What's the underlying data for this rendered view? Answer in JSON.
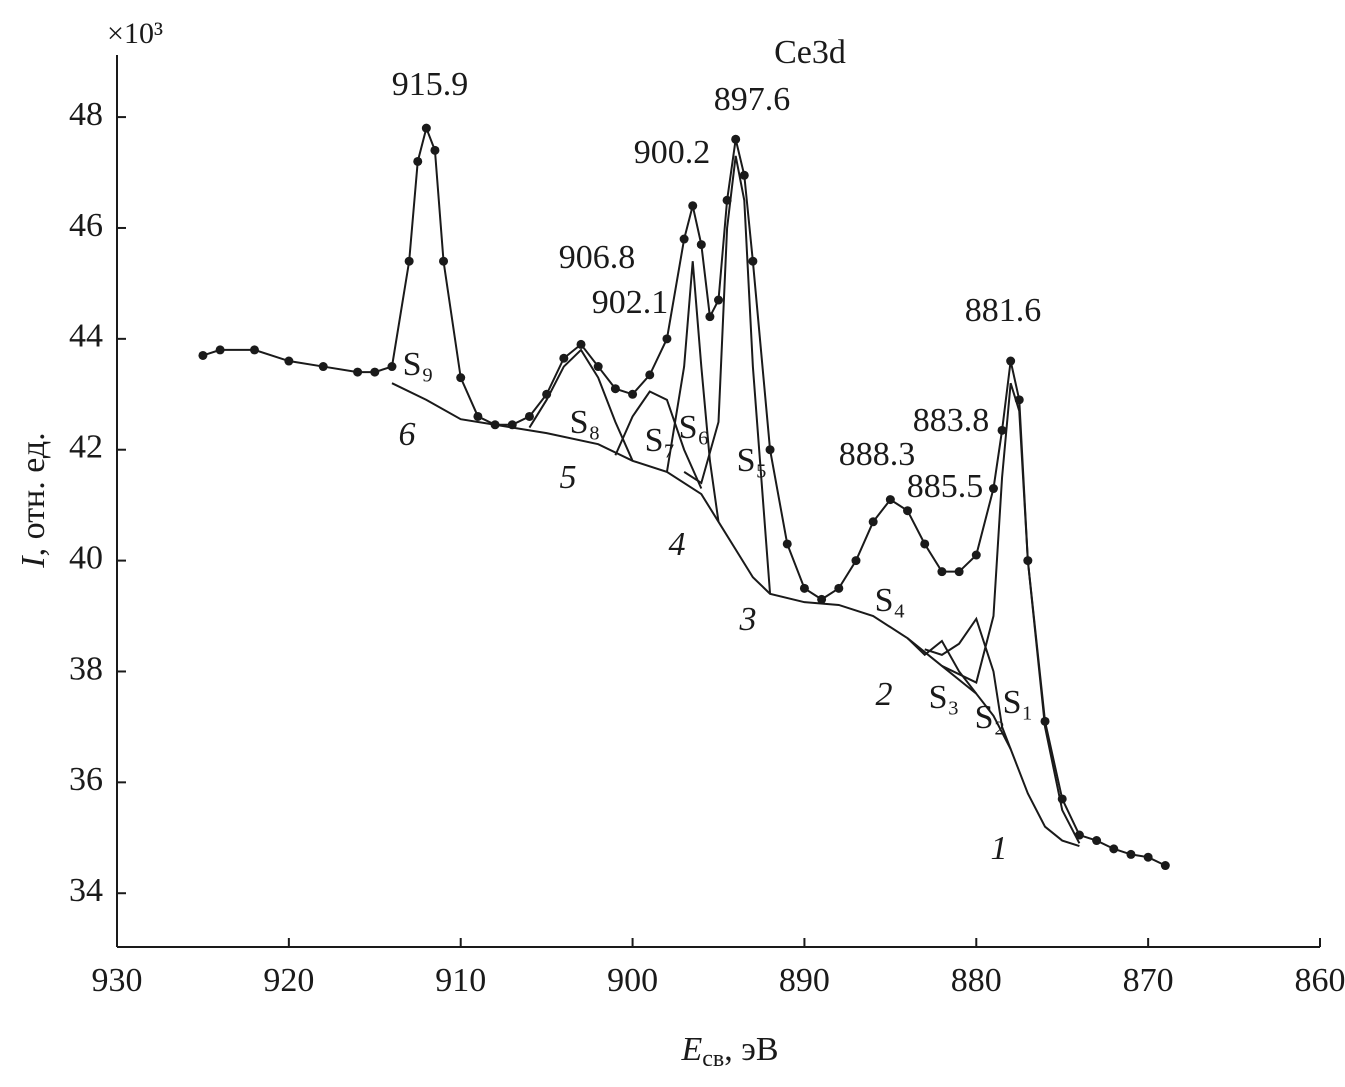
{
  "chart_data": {
    "type": "line",
    "title": "Ce3d",
    "y_multiplier": "×10³",
    "x_label": {
      "symbol": "E",
      "subscript": "св",
      "unit": ", эВ"
    },
    "y_label": {
      "symbol": "I",
      "unit": ", отн. ед."
    },
    "xlim": [
      930,
      860
    ],
    "xticks": [
      930,
      920,
      910,
      900,
      890,
      880,
      870,
      860
    ],
    "ylim": [
      33.03,
      49.12
    ],
    "yticks": [
      34,
      36,
      38,
      40,
      42,
      44,
      46,
      48
    ],
    "grid": false,
    "series": [
      {
        "style": "points-line",
        "color": "#1a1a1a",
        "x": [
          925,
          924,
          922,
          920,
          918,
          916,
          915,
          914,
          913,
          912.5,
          912,
          911.5,
          911,
          910,
          909,
          908,
          907,
          906,
          905,
          904,
          903,
          902,
          901,
          900,
          899,
          898,
          897,
          896.5,
          896,
          895.5,
          895,
          894.5,
          894,
          893.5,
          893,
          892,
          891,
          890,
          889,
          888,
          887,
          886,
          885,
          884,
          883,
          882,
          881,
          880,
          879,
          878.5,
          878,
          877.5,
          877,
          876,
          875,
          874,
          873,
          872,
          871,
          870,
          869
        ],
        "values": [
          43.7,
          43.8,
          43.8,
          43.6,
          43.5,
          43.4,
          43.4,
          43.5,
          45.4,
          47.2,
          47.8,
          47.4,
          45.4,
          43.3,
          42.6,
          42.45,
          42.45,
          42.6,
          43.0,
          43.65,
          43.9,
          43.5,
          43.1,
          43.0,
          43.35,
          44.0,
          45.8,
          46.4,
          45.7,
          44.4,
          44.7,
          46.5,
          47.6,
          46.95,
          45.4,
          42.0,
          40.3,
          39.5,
          39.3,
          39.5,
          40.0,
          40.7,
          41.1,
          40.9,
          40.3,
          39.8,
          39.8,
          40.1,
          41.3,
          42.35,
          43.6,
          42.9,
          40.0,
          37.1,
          35.7,
          35.05,
          34.95,
          34.8,
          34.7,
          34.65,
          34.5
        ]
      },
      {
        "style": "line",
        "color": "#1a1a1a",
        "x": [
          914,
          912,
          910,
          908,
          905,
          902,
          900,
          898,
          896,
          895,
          894,
          893,
          892,
          890,
          888,
          886,
          884,
          882,
          880,
          879,
          878,
          877,
          876,
          875,
          874
        ],
        "values": [
          43.2,
          42.9,
          42.55,
          42.45,
          42.3,
          42.1,
          41.8,
          41.6,
          41.2,
          40.7,
          40.2,
          39.7,
          39.4,
          39.25,
          39.2,
          39.0,
          38.6,
          38.1,
          37.6,
          37.2,
          36.6,
          35.8,
          35.2,
          34.95,
          34.85
        ]
      },
      {
        "style": "line",
        "color": "#1a1a1a",
        "x": [
          882,
          880,
          879,
          878.5,
          878,
          877.5,
          877,
          876,
          875,
          874
        ],
        "values": [
          38.1,
          37.8,
          39.0,
          41.5,
          43.2,
          42.7,
          40.0,
          37.0,
          35.5,
          34.9
        ]
      },
      {
        "style": "line",
        "color": "#1a1a1a",
        "x": [
          883,
          882,
          881,
          880,
          879,
          878.5,
          878
        ],
        "values": [
          38.4,
          38.3,
          38.5,
          38.95,
          38.0,
          37.0,
          36.6
        ]
      },
      {
        "style": "line",
        "color": "#1a1a1a",
        "x": [
          884,
          883,
          882,
          881,
          880
        ],
        "values": [
          38.6,
          38.3,
          38.55,
          38.0,
          37.6
        ]
      },
      {
        "style": "line",
        "color": "#1a1a1a",
        "x": [
          892,
          893,
          893.5,
          894,
          894.5,
          895,
          896,
          897
        ],
        "values": [
          39.4,
          43.5,
          46.5,
          47.3,
          46.0,
          42.5,
          41.4,
          41.6
        ]
      },
      {
        "style": "line",
        "color": "#1a1a1a",
        "x": [
          898,
          897,
          896.5,
          896,
          895.5,
          895
        ],
        "values": [
          41.6,
          43.5,
          45.4,
          43.5,
          41.8,
          40.7
        ]
      },
      {
        "style": "line",
        "color": "#1a1a1a",
        "x": [
          901,
          900,
          899,
          898,
          897,
          896
        ],
        "values": [
          41.9,
          42.6,
          43.05,
          42.9,
          42.0,
          41.3
        ]
      },
      {
        "style": "line",
        "color": "#1a1a1a",
        "x": [
          906,
          905,
          904,
          903,
          902,
          901,
          900
        ],
        "values": [
          42.4,
          42.9,
          43.5,
          43.8,
          43.3,
          42.5,
          41.8
        ]
      }
    ],
    "peak_labels": [
      "915.9",
      "906.8",
      "902.1",
      "900.2",
      "897.6",
      "888.3",
      "885.5",
      "883.8",
      "881.6"
    ],
    "component_labels": [
      "S₉",
      "S₈",
      "S₇",
      "S₆",
      "S₅",
      "S₄",
      "S₃",
      "S₂",
      "S₁"
    ],
    "curve_labels": [
      "6",
      "5",
      "4",
      "3",
      "2",
      "1"
    ]
  }
}
